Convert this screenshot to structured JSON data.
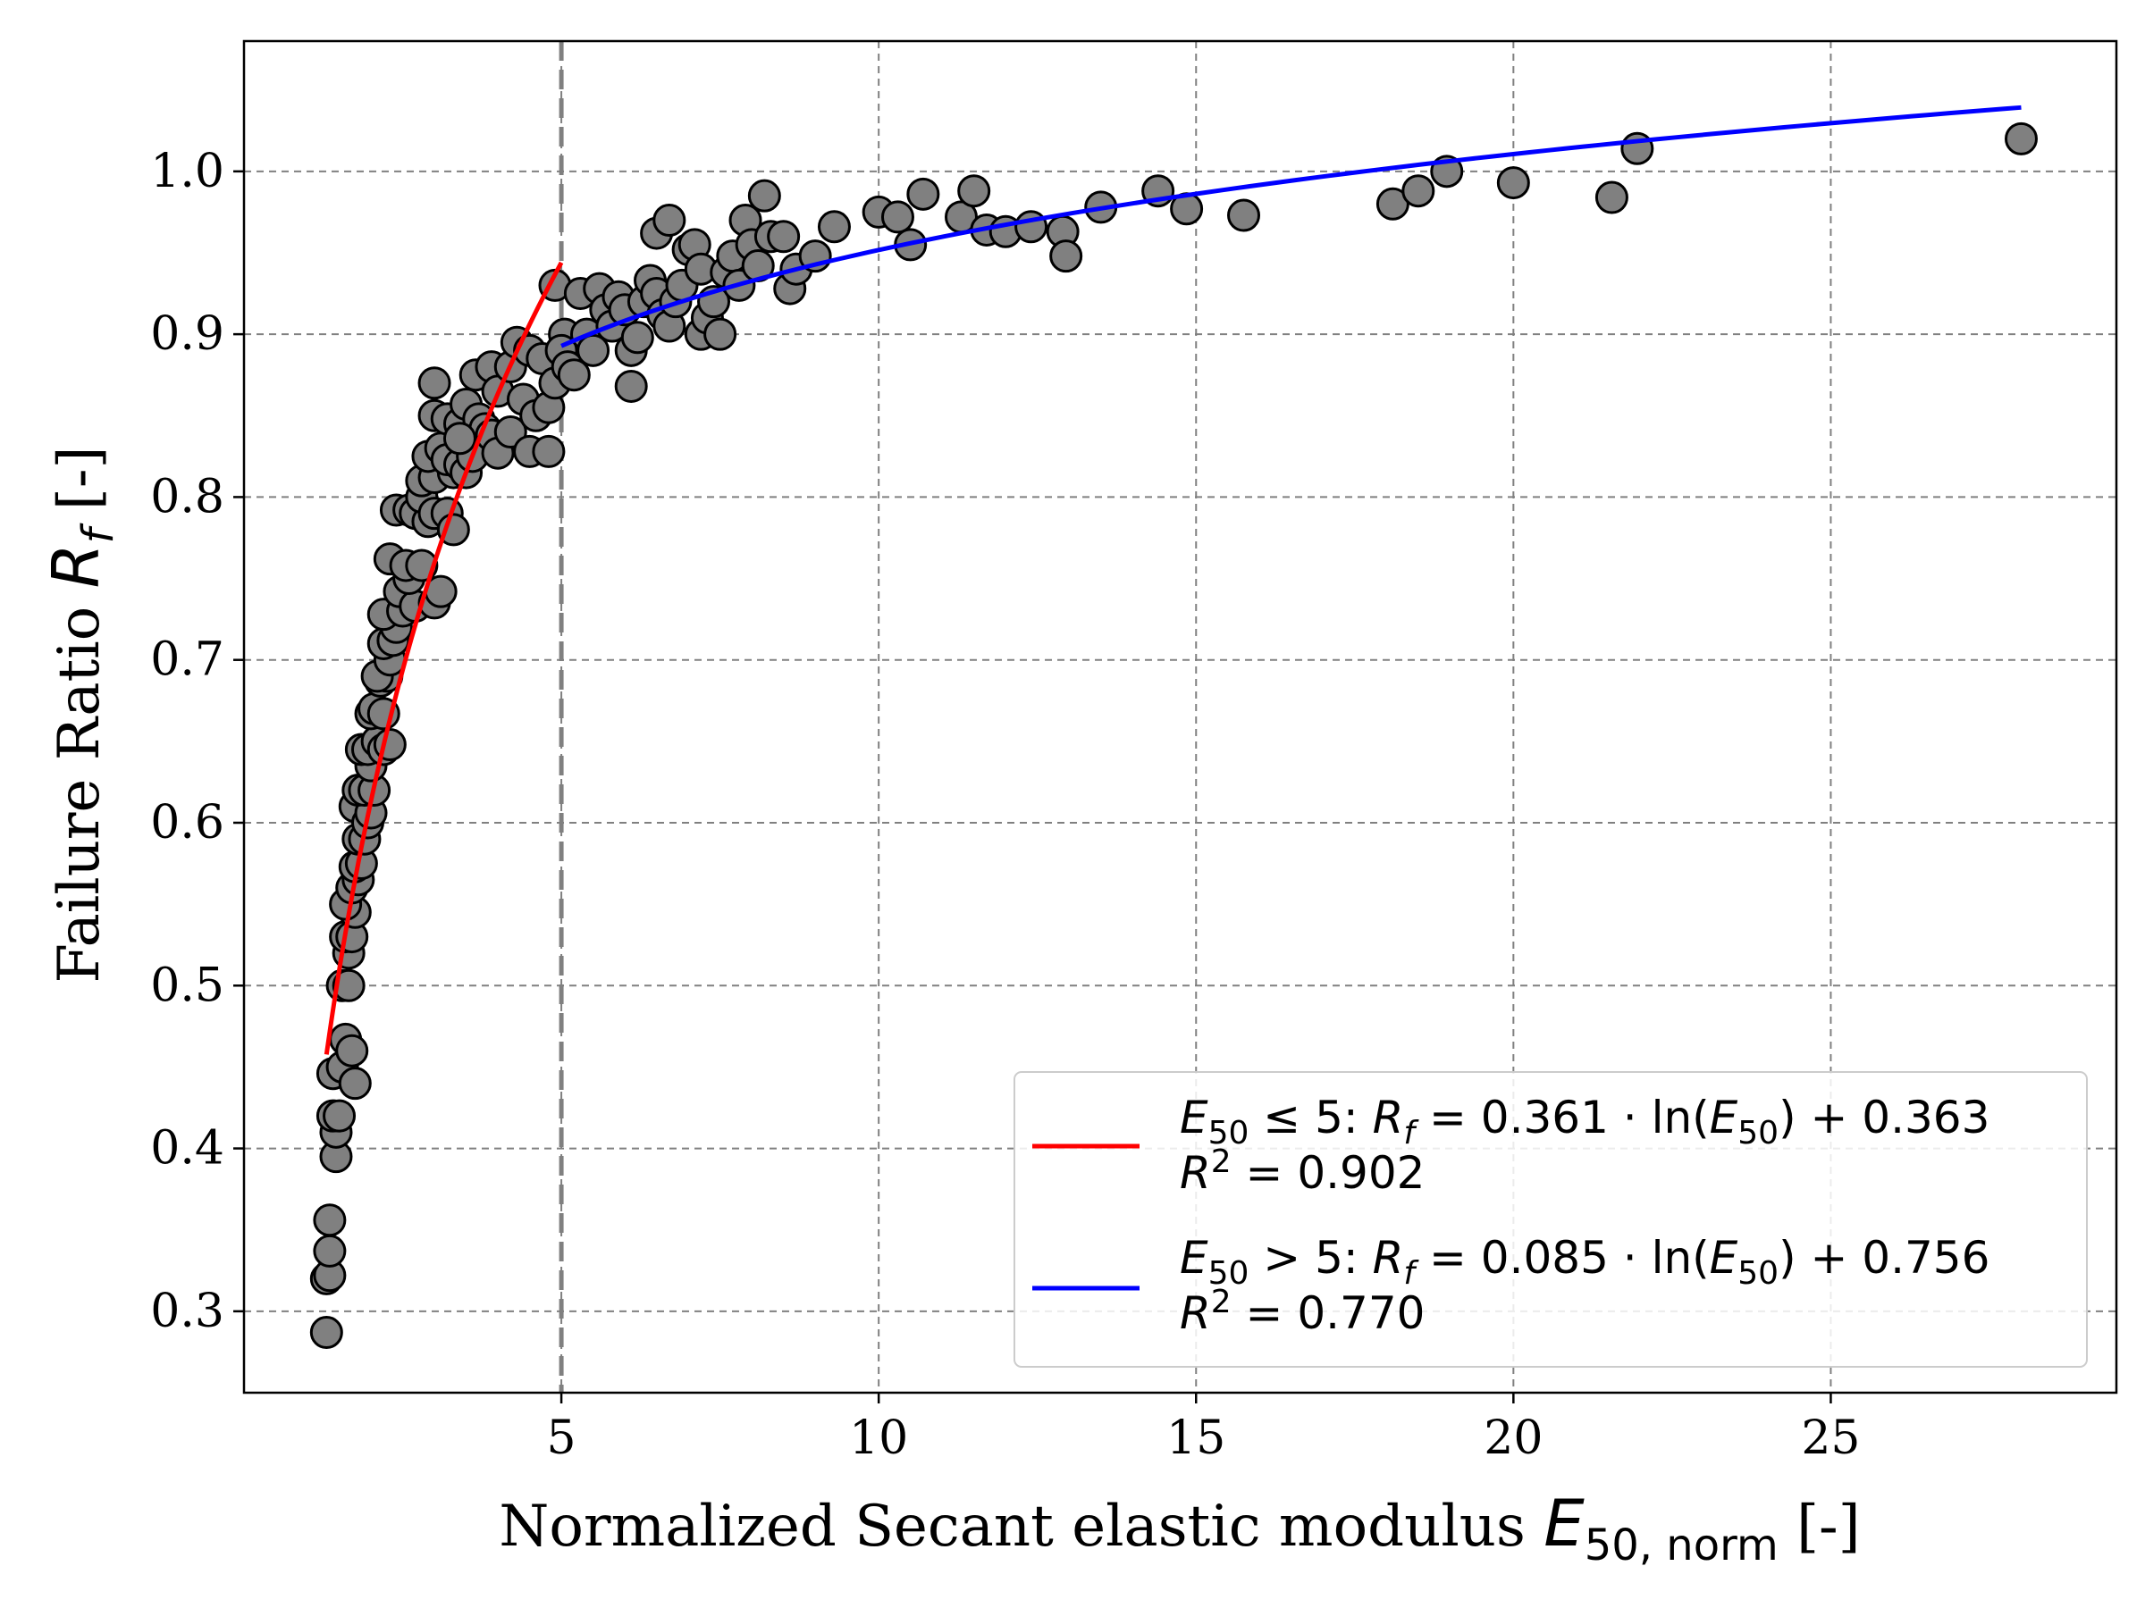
{
  "chart_data": {
    "type": "scatter",
    "title": "",
    "xlabel": {
      "text": "Normalized Secant elastic modulus ",
      "symbol": "E",
      "subscript": "50, norm",
      "unit": " [-]"
    },
    "ylabel": {
      "text": "Failure Ratio ",
      "symbol": "R",
      "subscript": "f",
      "unit": " [-]"
    },
    "xlim": [
      0,
      29.5
    ],
    "ylim": [
      0.25,
      1.08
    ],
    "x_ticks": [
      5,
      10,
      15,
      20,
      25
    ],
    "x_tick_labels": [
      "5",
      "10",
      "15",
      "20",
      "25"
    ],
    "y_ticks": [
      0.3,
      0.4,
      0.5,
      0.6,
      0.7,
      0.8,
      0.9,
      1.0
    ],
    "y_tick_labels": [
      "0.3",
      "0.4",
      "0.5",
      "0.6",
      "0.7",
      "0.8",
      "0.9",
      "1.0"
    ],
    "grid": true,
    "threshold_line": {
      "x": 5,
      "color": "#808080",
      "style": "dashed"
    },
    "legend_position": "lower right",
    "colors": {
      "marker_fill": "#808080",
      "marker_edge": "#000000",
      "grid": "#808080",
      "red_fit": "#ff0000",
      "blue_fit": "#0000ff"
    },
    "fits": [
      {
        "color": "#ff0000",
        "domain": [
          1.3,
          5.0
        ],
        "a": 0.361,
        "b": 0.363,
        "legend_line1": [
          "E",
          "50",
          " ≤ 5: ",
          "R",
          "f",
          " = 0.361 · ln(",
          "E",
          "50",
          ") + 0.363"
        ],
        "legend_line2": [
          "R",
          "2",
          " = 0.902"
        ]
      },
      {
        "color": "#0000ff",
        "domain": [
          5.0,
          28.0
        ],
        "a": 0.085,
        "b": 0.756,
        "legend_line1": [
          "E",
          "50",
          " > 5: ",
          "R",
          "f",
          " = 0.085 · ln(",
          "E",
          "50",
          ") + 0.756"
        ],
        "legend_line2": [
          "R",
          "2",
          " = 0.770"
        ]
      }
    ],
    "points": [
      [
        1.3,
        0.287
      ],
      [
        1.3,
        0.32
      ],
      [
        1.35,
        0.322
      ],
      [
        1.35,
        0.337
      ],
      [
        1.35,
        0.356
      ],
      [
        1.45,
        0.395
      ],
      [
        1.45,
        0.41
      ],
      [
        1.4,
        0.42
      ],
      [
        1.5,
        0.42
      ],
      [
        1.4,
        0.446
      ],
      [
        1.55,
        0.45
      ],
      [
        1.6,
        0.467
      ],
      [
        1.75,
        0.44
      ],
      [
        1.7,
        0.46
      ],
      [
        1.55,
        0.5
      ],
      [
        1.65,
        0.5
      ],
      [
        1.65,
        0.52
      ],
      [
        1.6,
        0.53
      ],
      [
        1.7,
        0.53
      ],
      [
        1.75,
        0.545
      ],
      [
        1.6,
        0.55
      ],
      [
        1.7,
        0.56
      ],
      [
        1.8,
        0.565
      ],
      [
        1.75,
        0.573
      ],
      [
        1.85,
        0.575
      ],
      [
        1.8,
        0.59
      ],
      [
        1.9,
        0.59
      ],
      [
        1.75,
        0.61
      ],
      [
        1.95,
        0.6
      ],
      [
        2.0,
        0.606
      ],
      [
        1.8,
        0.62
      ],
      [
        1.9,
        0.62
      ],
      [
        2.05,
        0.62
      ],
      [
        2.0,
        0.635
      ],
      [
        1.85,
        0.645
      ],
      [
        1.95,
        0.645
      ],
      [
        2.1,
        0.65
      ],
      [
        2.2,
        0.645
      ],
      [
        2.3,
        0.648
      ],
      [
        2.0,
        0.667
      ],
      [
        2.05,
        0.67
      ],
      [
        2.2,
        0.667
      ],
      [
        2.15,
        0.687
      ],
      [
        2.25,
        0.69
      ],
      [
        2.1,
        0.69
      ],
      [
        2.3,
        0.7
      ],
      [
        2.2,
        0.71
      ],
      [
        2.35,
        0.712
      ],
      [
        2.4,
        0.72
      ],
      [
        2.2,
        0.728
      ],
      [
        2.5,
        0.73
      ],
      [
        2.45,
        0.742
      ],
      [
        2.7,
        0.733
      ],
      [
        2.6,
        0.75
      ],
      [
        2.3,
        0.762
      ],
      [
        2.55,
        0.758
      ],
      [
        2.8,
        0.758
      ],
      [
        2.4,
        0.792
      ],
      [
        2.6,
        0.792
      ],
      [
        2.7,
        0.79
      ],
      [
        2.9,
        0.785
      ],
      [
        3.0,
        0.735
      ],
      [
        3.1,
        0.742
      ],
      [
        2.8,
        0.8
      ],
      [
        3.0,
        0.79
      ],
      [
        3.2,
        0.79
      ],
      [
        3.3,
        0.78
      ],
      [
        2.8,
        0.81
      ],
      [
        3.0,
        0.812
      ],
      [
        3.3,
        0.815
      ],
      [
        2.9,
        0.825
      ],
      [
        3.1,
        0.83
      ],
      [
        3.2,
        0.823
      ],
      [
        3.4,
        0.82
      ],
      [
        3.5,
        0.815
      ],
      [
        3.6,
        0.825
      ],
      [
        3.0,
        0.85
      ],
      [
        3.2,
        0.848
      ],
      [
        3.4,
        0.845
      ],
      [
        3.5,
        0.857
      ],
      [
        3.7,
        0.848
      ],
      [
        3.8,
        0.842
      ],
      [
        3.9,
        0.838
      ],
      [
        4.0,
        0.827
      ],
      [
        4.2,
        0.84
      ],
      [
        4.5,
        0.828
      ],
      [
        3.0,
        0.87
      ],
      [
        3.4,
        0.836
      ],
      [
        3.65,
        0.875
      ],
      [
        3.9,
        0.88
      ],
      [
        4.0,
        0.865
      ],
      [
        4.2,
        0.88
      ],
      [
        4.3,
        0.895
      ],
      [
        4.5,
        0.89
      ],
      [
        4.7,
        0.885
      ],
      [
        4.4,
        0.86
      ],
      [
        4.6,
        0.85
      ],
      [
        4.8,
        0.855
      ],
      [
        4.8,
        0.828
      ],
      [
        4.9,
        0.87
      ],
      [
        4.9,
        0.93
      ],
      [
        5.05,
        0.9
      ],
      [
        5.0,
        0.89
      ],
      [
        5.1,
        0.88
      ],
      [
        5.2,
        0.875
      ],
      [
        5.3,
        0.925
      ],
      [
        5.4,
        0.9
      ],
      [
        5.5,
        0.89
      ],
      [
        5.6,
        0.928
      ],
      [
        5.7,
        0.915
      ],
      [
        5.8,
        0.905
      ],
      [
        5.9,
        0.923
      ],
      [
        6.0,
        0.915
      ],
      [
        6.1,
        0.89
      ],
      [
        6.1,
        0.868
      ],
      [
        6.2,
        0.898
      ],
      [
        6.3,
        0.92
      ],
      [
        6.4,
        0.933
      ],
      [
        6.5,
        0.925
      ],
      [
        6.6,
        0.912
      ],
      [
        6.7,
        0.905
      ],
      [
        6.5,
        0.962
      ],
      [
        6.7,
        0.97
      ],
      [
        6.8,
        0.92
      ],
      [
        6.9,
        0.93
      ],
      [
        7.0,
        0.952
      ],
      [
        7.1,
        0.955
      ],
      [
        7.2,
        0.94
      ],
      [
        7.2,
        0.9
      ],
      [
        7.3,
        0.91
      ],
      [
        7.4,
        0.92
      ],
      [
        7.5,
        0.9
      ],
      [
        7.6,
        0.938
      ],
      [
        7.7,
        0.948
      ],
      [
        7.8,
        0.93
      ],
      [
        7.9,
        0.97
      ],
      [
        8.0,
        0.955
      ],
      [
        8.1,
        0.942
      ],
      [
        8.2,
        0.985
      ],
      [
        8.3,
        0.96
      ],
      [
        8.5,
        0.96
      ],
      [
        8.6,
        0.928
      ],
      [
        8.7,
        0.94
      ],
      [
        9.0,
        0.948
      ],
      [
        9.3,
        0.966
      ],
      [
        10.0,
        0.975
      ],
      [
        10.3,
        0.972
      ],
      [
        10.5,
        0.955
      ],
      [
        10.7,
        0.986
      ],
      [
        11.3,
        0.972
      ],
      [
        11.5,
        0.988
      ],
      [
        11.7,
        0.964
      ],
      [
        12.0,
        0.963
      ],
      [
        12.4,
        0.966
      ],
      [
        12.9,
        0.963
      ],
      [
        12.95,
        0.948
      ],
      [
        13.5,
        0.978
      ],
      [
        14.4,
        0.988
      ],
      [
        14.85,
        0.977
      ],
      [
        15.75,
        0.973
      ],
      [
        18.1,
        0.98
      ],
      [
        18.5,
        0.988
      ],
      [
        18.95,
        1.0
      ],
      [
        20.0,
        0.993
      ],
      [
        21.55,
        0.984
      ],
      [
        21.95,
        1.014
      ],
      [
        28.0,
        1.02
      ]
    ]
  }
}
